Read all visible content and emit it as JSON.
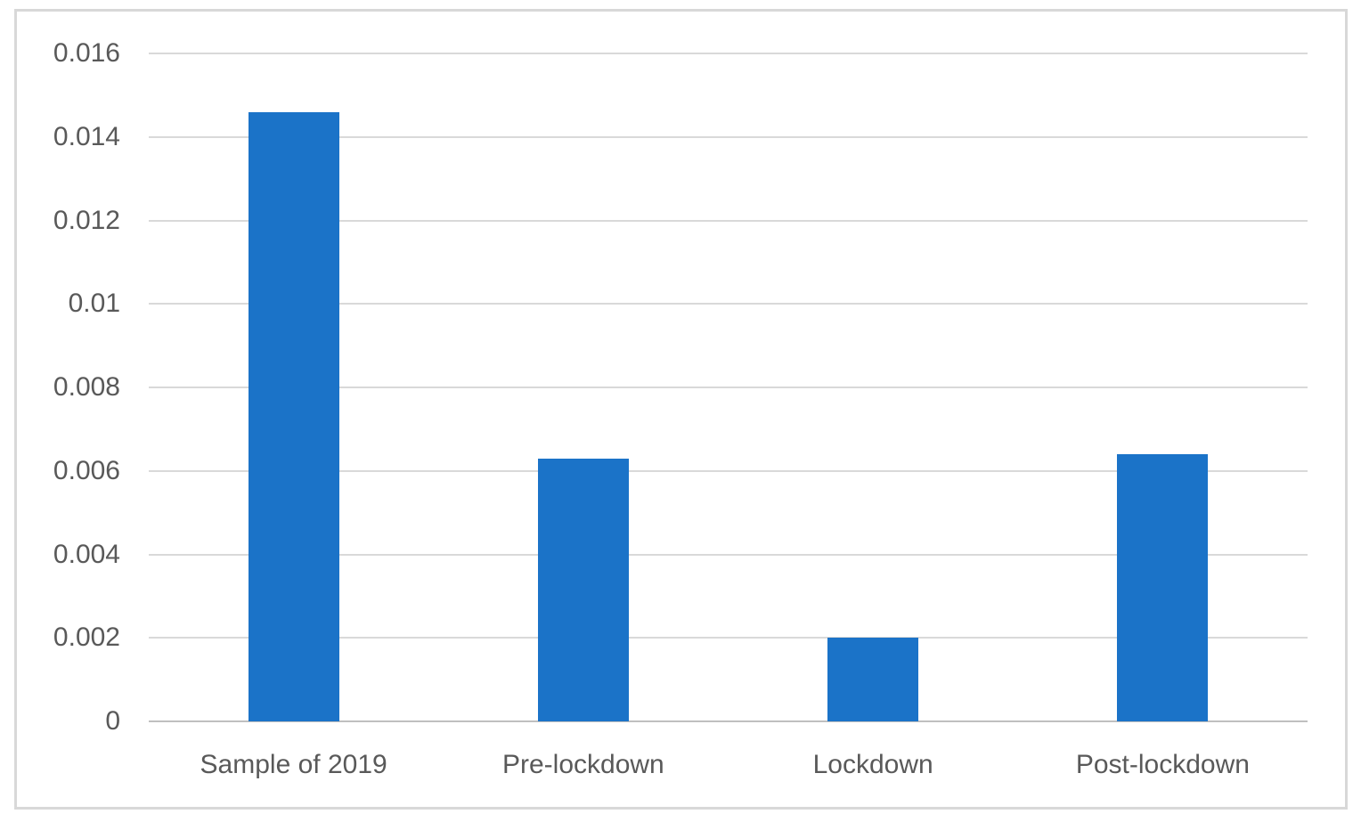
{
  "chart_data": {
    "type": "bar",
    "title": "",
    "xlabel": "",
    "ylabel": "",
    "categories": [
      "Sample of 2019",
      "Pre-lockdown",
      "Lockdown",
      "Post-lockdown"
    ],
    "values": [
      0.0146,
      0.0063,
      0.002,
      0.0064
    ],
    "ylim": [
      0,
      0.016
    ],
    "ytick_step": 0.002,
    "ytick_labels": [
      "0",
      "0.002",
      "0.004",
      "0.006",
      "0.008",
      "0.01",
      "0.012",
      "0.014",
      "0.016"
    ],
    "grid": true,
    "legend": false,
    "colors": {
      "bar": "#1b73c8",
      "gridline": "#d9d9d9",
      "axis_line": "#bfbfbf",
      "tick_label": "#595959",
      "frame_border": "#d8d8d8",
      "background": "#ffffff"
    }
  }
}
